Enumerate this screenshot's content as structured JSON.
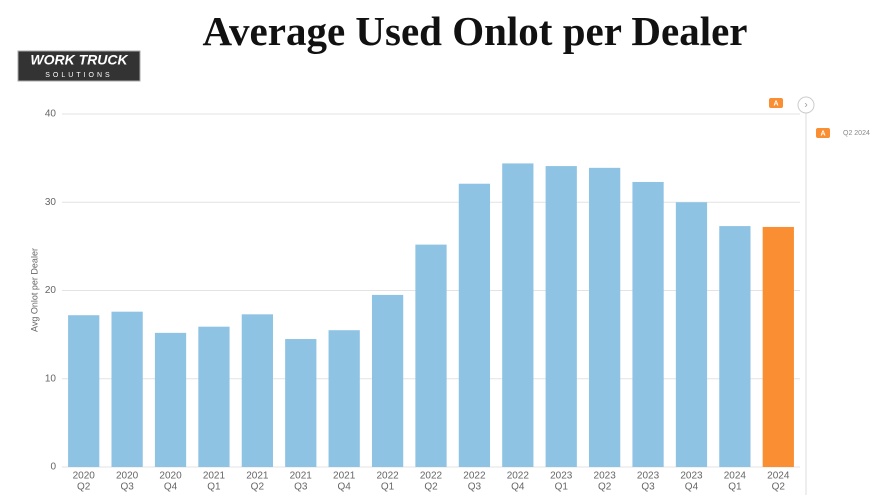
{
  "logo": {
    "line1": "WORK TRUCK",
    "line2": "SOLUTIONS"
  },
  "panel": {
    "badge": "A",
    "legend_badge": "A",
    "legend_label": "Q2 2024"
  },
  "chart_data": {
    "type": "bar",
    "title": "Average Used Onlot per Dealer",
    "y_label": "Avg Onlot per Dealer",
    "categories": [
      [
        "2020",
        "Q2"
      ],
      [
        "2020",
        "Q3"
      ],
      [
        "2020",
        "Q4"
      ],
      [
        "2021",
        "Q1"
      ],
      [
        "2021",
        "Q2"
      ],
      [
        "2021",
        "Q3"
      ],
      [
        "2021",
        "Q4"
      ],
      [
        "2022",
        "Q1"
      ],
      [
        "2022",
        "Q2"
      ],
      [
        "2022",
        "Q3"
      ],
      [
        "2022",
        "Q4"
      ],
      [
        "2023",
        "Q1"
      ],
      [
        "2023",
        "Q2"
      ],
      [
        "2023",
        "Q3"
      ],
      [
        "2023",
        "Q4"
      ],
      [
        "2024",
        "Q1"
      ],
      [
        "2024",
        "Q2"
      ]
    ],
    "values": [
      17.2,
      17.6,
      15.2,
      15.9,
      17.3,
      14.5,
      15.5,
      19.5,
      25.2,
      32.1,
      34.4,
      34.1,
      33.9,
      32.3,
      30.0,
      27.3,
      27.2
    ],
    "colors": [
      "#8fc3e4",
      "#8fc3e4",
      "#8fc3e4",
      "#8fc3e4",
      "#8fc3e4",
      "#8fc3e4",
      "#8fc3e4",
      "#8fc3e4",
      "#8fc3e4",
      "#8fc3e4",
      "#8fc3e4",
      "#8fc3e4",
      "#8fc3e4",
      "#8fc3e4",
      "#8fc3e4",
      "#8fc3e4",
      "#f98e33"
    ],
    "ylim": [
      0,
      40
    ],
    "yticks": [
      0,
      10,
      20,
      30,
      40
    ],
    "grid": true
  }
}
